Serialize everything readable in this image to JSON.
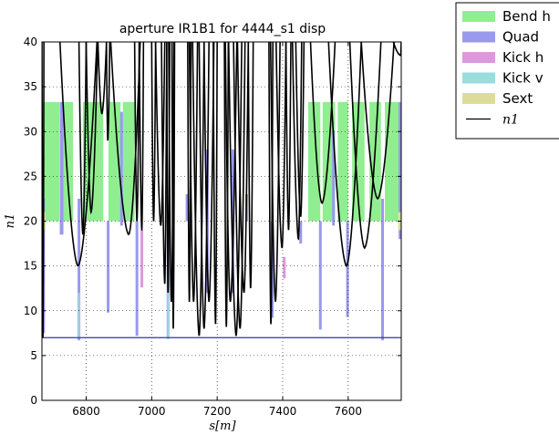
{
  "chart_data": {
    "type": "line",
    "title": "aperture IR1B1 for 4444_s1 disp",
    "xlabel": "s[m]",
    "ylabel": "n1",
    "xlim": [
      6665,
      7762
    ],
    "ylim": [
      0,
      40
    ],
    "x_ticks": [
      6800,
      7000,
      7200,
      7400,
      7600
    ],
    "y_ticks": [
      0,
      5,
      10,
      15,
      20,
      25,
      30,
      35,
      40
    ],
    "grid": true,
    "legend_placement": "outside-top-right",
    "colors": {
      "bend_h": "#90ee90",
      "quad": "#9999ee",
      "kick_h": "#dd99dd",
      "kick_v": "#99dddd",
      "sext": "#dddd99",
      "n1": "#000000",
      "threshold": "#3333aa"
    },
    "legend": [
      {
        "key": "bend_h",
        "label": "Bend h"
      },
      {
        "key": "quad",
        "label": "Quad"
      },
      {
        "key": "kick_h",
        "label": "Kick h"
      },
      {
        "key": "kick_v",
        "label": "Kick v"
      },
      {
        "key": "sext",
        "label": "Sext"
      },
      {
        "key": "n1",
        "label": "n1"
      }
    ],
    "bend_h_blocks": [
      {
        "x0": 6665,
        "x1": 6718,
        "y0": 20,
        "y1": 33.3
      },
      {
        "x0": 6722,
        "x1": 6760,
        "y0": 20,
        "y1": 33.3
      },
      {
        "x0": 6790,
        "x1": 6852,
        "y0": 20,
        "y1": 33.3
      },
      {
        "x0": 6868,
        "x1": 6905,
        "y0": 20,
        "y1": 33.3
      },
      {
        "x0": 6912,
        "x1": 6948,
        "y0": 20,
        "y1": 33.3
      },
      {
        "x0": 7478,
        "x1": 7515,
        "y0": 20,
        "y1": 33.3
      },
      {
        "x0": 7522,
        "x1": 7560,
        "y0": 20,
        "y1": 33.3
      },
      {
        "x0": 7568,
        "x1": 7600,
        "y0": 20,
        "y1": 33.3
      },
      {
        "x0": 7612,
        "x1": 7650,
        "y0": 20,
        "y1": 33.3
      },
      {
        "x0": 7665,
        "x1": 7700,
        "y0": 20,
        "y1": 33.3
      },
      {
        "x0": 7712,
        "x1": 7762,
        "y0": 20,
        "y1": 33.3
      }
    ],
    "quad_bars": [
      {
        "x": 6670,
        "y0": 7.5,
        "y1": 22.5
      },
      {
        "x": 6725,
        "x_w": 4,
        "y0": 18.5,
        "y1": 33.3
      },
      {
        "x": 6778,
        "y0": 6.7,
        "y1": 22.5
      },
      {
        "x": 6867,
        "y0": 9.8,
        "y1": 20
      },
      {
        "x": 6908,
        "y0": 19.5,
        "y1": 32.2
      },
      {
        "x": 6955,
        "y0": 7.2,
        "y1": 20
      },
      {
        "x": 7050,
        "y0": 6.9,
        "y1": 20
      },
      {
        "x": 7108,
        "y0": 20,
        "y1": 23
      },
      {
        "x": 7170,
        "y0": 12,
        "y1": 28
      },
      {
        "x": 7248,
        "y0": 12,
        "y1": 28
      },
      {
        "x": 7290,
        "y0": 20,
        "y1": 23
      },
      {
        "x": 7368,
        "y0": 9.2,
        "y1": 20
      },
      {
        "x": 7455,
        "y0": 17.5,
        "y1": 20
      },
      {
        "x": 7515,
        "y0": 7.9,
        "y1": 20
      },
      {
        "x": 7555,
        "y0": 19.5,
        "y1": 30.1
      },
      {
        "x": 7598,
        "y0": 9.3,
        "y1": 20
      },
      {
        "x": 7705,
        "y0": 6.7,
        "y1": 22.5
      },
      {
        "x": 7758,
        "y0": 18,
        "y1": 33.3
      }
    ],
    "kick_h_bars": [
      {
        "x": 6970,
        "y0": 12.6,
        "y1": 19
      },
      {
        "x": 7405,
        "y0": 13.6,
        "y1": 16
      }
    ],
    "kick_v_bars": [
      {
        "x": 6778,
        "y0": 6.9,
        "y1": 12
      },
      {
        "x": 7050,
        "y0": 6.8,
        "y1": 12
      }
    ],
    "sext_bars": [
      {
        "x": 6672,
        "y0": 19,
        "y1": 21
      },
      {
        "x": 7757,
        "y0": 19,
        "y1": 21
      }
    ],
    "threshold_line": {
      "y": 7
    },
    "n1_segments": [
      {
        "x0": 6665,
        "x1": 6671,
        "x_min": 6668,
        "y_min": 7,
        "y_max": 40
      },
      {
        "x0": 6720,
        "x1": 6833,
        "x_min": 6775,
        "y_min": 15,
        "y_max": 40
      },
      {
        "x0": 6778,
        "x1": 6800,
        "x_min": 6790,
        "y_min": 18.5,
        "y_max": 40
      },
      {
        "x0": 6800,
        "x1": 6835,
        "x_min": 6815,
        "y_min": 21,
        "y_max": 40
      },
      {
        "x0": 6836,
        "x1": 6862,
        "x_min": 6848,
        "y_min": 32,
        "y_max": 40
      },
      {
        "x0": 6862,
        "x1": 6872,
        "x_min": 6866,
        "y_min": 29,
        "y_max": 40
      },
      {
        "x0": 6875,
        "x1": 6965,
        "x_min": 6930,
        "y_min": 18.5,
        "y_max": 40
      },
      {
        "x0": 6948,
        "x1": 6962,
        "x_min": 6955,
        "y_min": 20,
        "y_max": 40
      },
      {
        "x0": 6962,
        "x1": 6975,
        "x_min": 6970,
        "y_min": 19,
        "y_max": 40
      },
      {
        "x0": 7000,
        "x1": 7012,
        "x_min": 7006,
        "y_min": 20,
        "y_max": 40
      },
      {
        "x0": 7012,
        "x1": 7040,
        "x_min": 7028,
        "y_min": 19.5,
        "y_max": 40
      },
      {
        "x0": 7030,
        "x1": 7046,
        "x_min": 7040,
        "y_min": 13,
        "y_max": 40
      },
      {
        "x0": 7046,
        "x1": 7055,
        "x_min": 7050,
        "y_min": 12,
        "y_max": 40
      },
      {
        "x0": 7052,
        "x1": 7068,
        "x_min": 7060,
        "y_min": 11,
        "y_max": 40
      },
      {
        "x0": 7062,
        "x1": 7070,
        "x_min": 7066,
        "y_min": 8,
        "y_max": 40
      },
      {
        "x0": 7110,
        "x1": 7120,
        "x_min": 7115,
        "y_min": 11,
        "y_max": 40
      },
      {
        "x0": 7115,
        "x1": 7140,
        "x_min": 7128,
        "y_min": 11,
        "y_max": 40
      },
      {
        "x0": 7125,
        "x1": 7160,
        "x_min": 7145,
        "y_min": 7.2,
        "y_max": 40
      },
      {
        "x0": 7145,
        "x1": 7175,
        "x_min": 7160,
        "y_min": 8,
        "y_max": 40
      },
      {
        "x0": 7160,
        "x1": 7190,
        "x_min": 7175,
        "y_min": 11,
        "y_max": 40
      },
      {
        "x0": 7188,
        "x1": 7200,
        "x_min": 7195,
        "y_min": 8.5,
        "y_max": 40
      },
      {
        "x0": 7222,
        "x1": 7234,
        "x_min": 7228,
        "y_min": 8.2,
        "y_max": 40
      },
      {
        "x0": 7225,
        "x1": 7260,
        "x_min": 7240,
        "y_min": 11,
        "y_max": 40
      },
      {
        "x0": 7235,
        "x1": 7275,
        "x_min": 7258,
        "y_min": 7.2,
        "y_max": 40
      },
      {
        "x0": 7250,
        "x1": 7285,
        "x_min": 7270,
        "y_min": 8,
        "y_max": 40
      },
      {
        "x0": 7262,
        "x1": 7295,
        "x_min": 7282,
        "y_min": 12,
        "y_max": 40
      },
      {
        "x0": 7295,
        "x1": 7310,
        "x_min": 7302,
        "y_min": 12.5,
        "y_max": 40
      },
      {
        "x0": 7358,
        "x1": 7370,
        "x_min": 7364,
        "y_min": 8.5,
        "y_max": 40
      },
      {
        "x0": 7363,
        "x1": 7392,
        "x_min": 7378,
        "y_min": 11,
        "y_max": 40
      },
      {
        "x0": 7380,
        "x1": 7410,
        "x_min": 7398,
        "y_min": 17,
        "y_max": 40
      },
      {
        "x0": 7410,
        "x1": 7425,
        "x_min": 7418,
        "y_min": 19,
        "y_max": 40
      },
      {
        "x0": 7430,
        "x1": 7458,
        "x_min": 7448,
        "y_min": 18,
        "y_max": 40
      },
      {
        "x0": 7440,
        "x1": 7465,
        "x_min": 7455,
        "y_min": 20.5,
        "y_max": 40
      },
      {
        "x0": 7485,
        "x1": 7560,
        "x_min": 7520,
        "y_min": 22,
        "y_max": 40
      },
      {
        "x0": 7540,
        "x1": 7640,
        "x_min": 7595,
        "y_min": 15,
        "y_max": 40
      },
      {
        "x0": 7605,
        "x1": 7700,
        "x_min": 7650,
        "y_min": 17,
        "y_max": 40
      },
      {
        "x0": 7640,
        "x1": 7740,
        "x_min": 7690,
        "y_min": 22.5,
        "y_max": 40
      },
      {
        "x0": 7738,
        "x1": 7762,
        "x_min": 7760,
        "y_min": 38.5,
        "y_max": 40
      }
    ]
  }
}
